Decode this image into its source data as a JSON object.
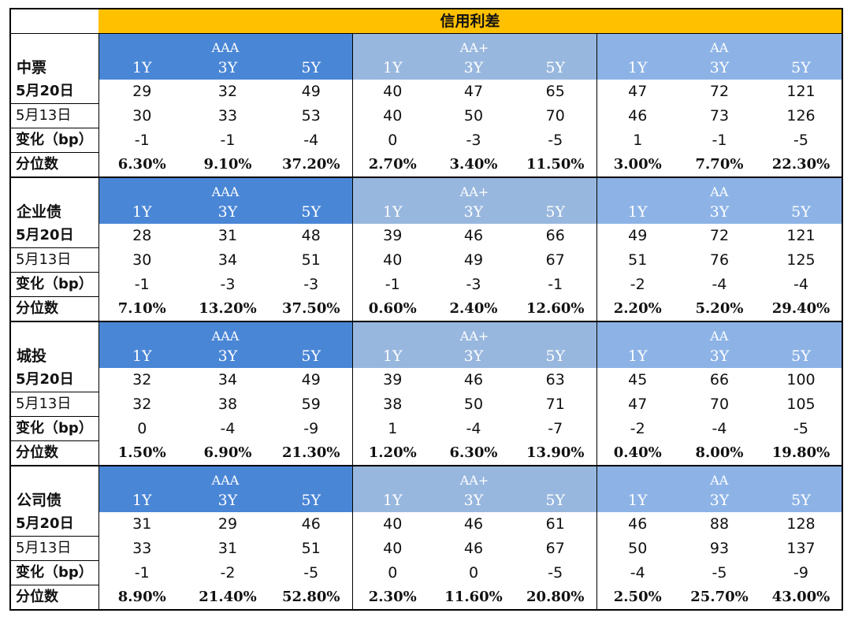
{
  "title": "信用利差",
  "group_labels": [
    "AAA",
    "AA+",
    "AA"
  ],
  "tenor_labels": [
    "1Y",
    "3Y",
    "5Y"
  ],
  "row_labels": [
    "5月20日",
    "5月13日",
    "变化（bp）",
    "分位数"
  ],
  "sections": [
    {
      "name": "中票",
      "rows": [
        [
          "29",
          "32",
          "49",
          "40",
          "47",
          "65",
          "47",
          "72",
          "121"
        ],
        [
          "30",
          "33",
          "53",
          "40",
          "50",
          "70",
          "46",
          "73",
          "126"
        ],
        [
          "-1",
          "-1",
          "-4",
          "0",
          "-3",
          "-5",
          "1",
          "-1",
          "-5"
        ],
        [
          "6.30%",
          "9.10%",
          "37.20%",
          "2.70%",
          "3.40%",
          "11.50%",
          "3.00%",
          "7.70%",
          "22.30%"
        ]
      ]
    },
    {
      "name": "企业债",
      "rows": [
        [
          "28",
          "31",
          "48",
          "39",
          "46",
          "66",
          "49",
          "72",
          "121"
        ],
        [
          "30",
          "34",
          "51",
          "40",
          "49",
          "67",
          "51",
          "76",
          "125"
        ],
        [
          "-1",
          "-3",
          "-3",
          "-1",
          "-3",
          "-1",
          "-2",
          "-4",
          "-4"
        ],
        [
          "7.10%",
          "13.20%",
          "37.50%",
          "0.60%",
          "2.40%",
          "12.60%",
          "2.20%",
          "5.20%",
          "29.40%"
        ]
      ]
    },
    {
      "name": "城投",
      "rows": [
        [
          "32",
          "34",
          "49",
          "39",
          "46",
          "63",
          "45",
          "66",
          "100"
        ],
        [
          "32",
          "38",
          "59",
          "38",
          "50",
          "71",
          "47",
          "70",
          "105"
        ],
        [
          "0",
          "-4",
          "-9",
          "1",
          "-4",
          "-7",
          "-2",
          "-4",
          "-5"
        ],
        [
          "1.50%",
          "6.90%",
          "21.30%",
          "1.20%",
          "6.30%",
          "13.90%",
          "0.40%",
          "8.00%",
          "19.80%"
        ]
      ]
    },
    {
      "name": "公司债",
      "rows": [
        [
          "31",
          "29",
          "46",
          "40",
          "46",
          "61",
          "46",
          "88",
          "128"
        ],
        [
          "33",
          "31",
          "51",
          "40",
          "46",
          "67",
          "50",
          "93",
          "137"
        ],
        [
          "-1",
          "-2",
          "-5",
          "0",
          "0",
          "-5",
          "-4",
          "-5",
          "-9"
        ],
        [
          "8.90%",
          "21.40%",
          "52.80%",
          "2.30%",
          "11.60%",
          "20.80%",
          "2.50%",
          "25.70%",
          "43.00%"
        ]
      ]
    }
  ],
  "colors": {
    "title_bg": "#ffc000",
    "aaa_bg": "#4a86d6",
    "aa_plus_bg": "#98b7de",
    "aa_bg": "#8db3e6"
  }
}
